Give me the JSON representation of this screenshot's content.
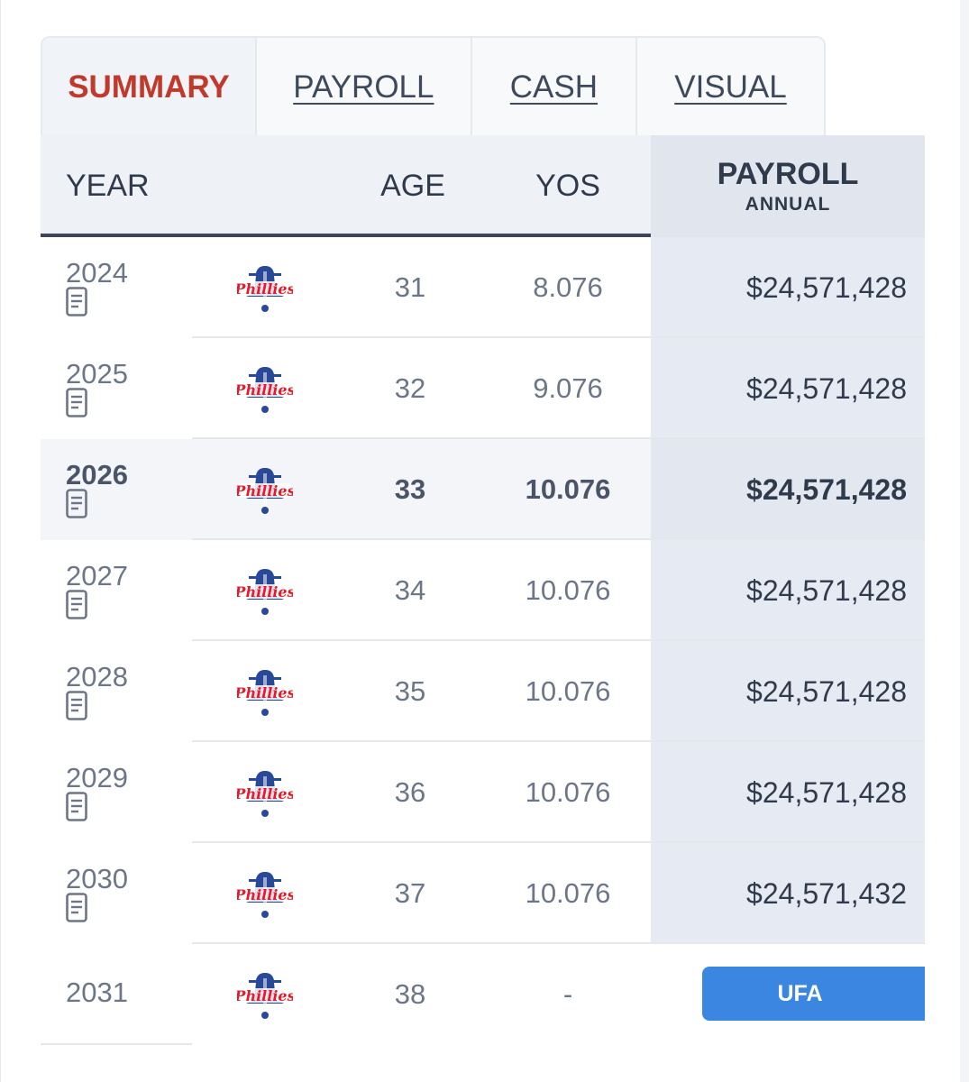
{
  "tabs": [
    {
      "label": "SUMMARY",
      "active": true
    },
    {
      "label": "PAYROLL",
      "active": false
    },
    {
      "label": "CASH",
      "active": false
    },
    {
      "label": "VISUAL",
      "active": false
    }
  ],
  "columns": {
    "year": "YEAR",
    "age": "AGE",
    "yos": "YOS",
    "payroll": "PAYROLL",
    "payroll_sub": "ANNUAL"
  },
  "rows": [
    {
      "year": "2024",
      "age": "31",
      "yos": "8.076",
      "payroll": "$24,571,428"
    },
    {
      "year": "2025",
      "age": "32",
      "yos": "9.076",
      "payroll": "$24,571,428"
    },
    {
      "year": "2026",
      "age": "33",
      "yos": "10.076",
      "payroll": "$24,571,428"
    },
    {
      "year": "2027",
      "age": "34",
      "yos": "10.076",
      "payroll": "$24,571,428"
    },
    {
      "year": "2028",
      "age": "35",
      "yos": "10.076",
      "payroll": "$24,571,428"
    },
    {
      "year": "2029",
      "age": "36",
      "yos": "10.076",
      "payroll": "$24,571,428"
    },
    {
      "year": "2030",
      "age": "37",
      "yos": "10.076",
      "payroll": "$24,571,432"
    },
    {
      "year": "2031",
      "age": "38",
      "yos": "-",
      "payroll": "UFA"
    }
  ],
  "logo_icon": "phillies-logo-icon",
  "doc_icon": "contract-document-icon",
  "colors": {
    "active_tab": "#c0392b",
    "ufa_badge": "#3a86e0",
    "header_rule": "#3d4757",
    "logo_blue": "#284898",
    "logo_red": "#e81828"
  }
}
